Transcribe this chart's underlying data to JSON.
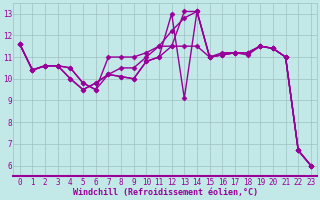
{
  "xlabel": "Windchill (Refroidissement éolien,°C)",
  "xlim": [
    -0.5,
    23.5
  ],
  "ylim": [
    5.5,
    13.5
  ],
  "yticks": [
    6,
    7,
    8,
    9,
    10,
    11,
    12,
    13
  ],
  "xticks": [
    0,
    1,
    2,
    3,
    4,
    5,
    6,
    7,
    8,
    9,
    10,
    11,
    12,
    13,
    14,
    15,
    16,
    17,
    18,
    19,
    20,
    21,
    22,
    23
  ],
  "bg_color": "#c2e8e8",
  "grid_color": "#a0c0c0",
  "line_color": "#990099",
  "series": [
    [
      11.6,
      10.4,
      10.6,
      10.6,
      10.5,
      9.8,
      9.5,
      10.2,
      10.5,
      10.5,
      11.0,
      11.5,
      12.2,
      12.8,
      13.1,
      11.0,
      11.1,
      11.2,
      11.1,
      11.5,
      11.4,
      11.0,
      6.7,
      6.0
    ],
    [
      11.6,
      10.4,
      10.6,
      10.6,
      10.5,
      9.8,
      9.5,
      11.0,
      11.0,
      11.0,
      11.2,
      11.5,
      11.5,
      13.1,
      13.1,
      11.0,
      11.2,
      11.2,
      11.2,
      11.5,
      11.4,
      11.0,
      6.7,
      6.0
    ],
    [
      11.6,
      10.4,
      10.6,
      10.6,
      10.0,
      9.5,
      9.8,
      10.2,
      10.1,
      10.0,
      10.8,
      11.0,
      13.0,
      9.1,
      13.1,
      11.0,
      11.1,
      11.2,
      11.2,
      11.5,
      11.4,
      11.0,
      6.7,
      6.0
    ],
    [
      11.6,
      10.4,
      10.6,
      10.6,
      10.0,
      9.5,
      9.8,
      10.2,
      10.1,
      10.0,
      10.8,
      11.0,
      11.5,
      11.5,
      11.5,
      11.0,
      11.1,
      11.2,
      11.2,
      11.5,
      11.4,
      11.0,
      6.7,
      6.0
    ]
  ],
  "marker": "D",
  "markersize": 2.5,
  "linewidth": 1.0,
  "xlabel_fontsize": 6,
  "tick_fontsize": 5.5
}
